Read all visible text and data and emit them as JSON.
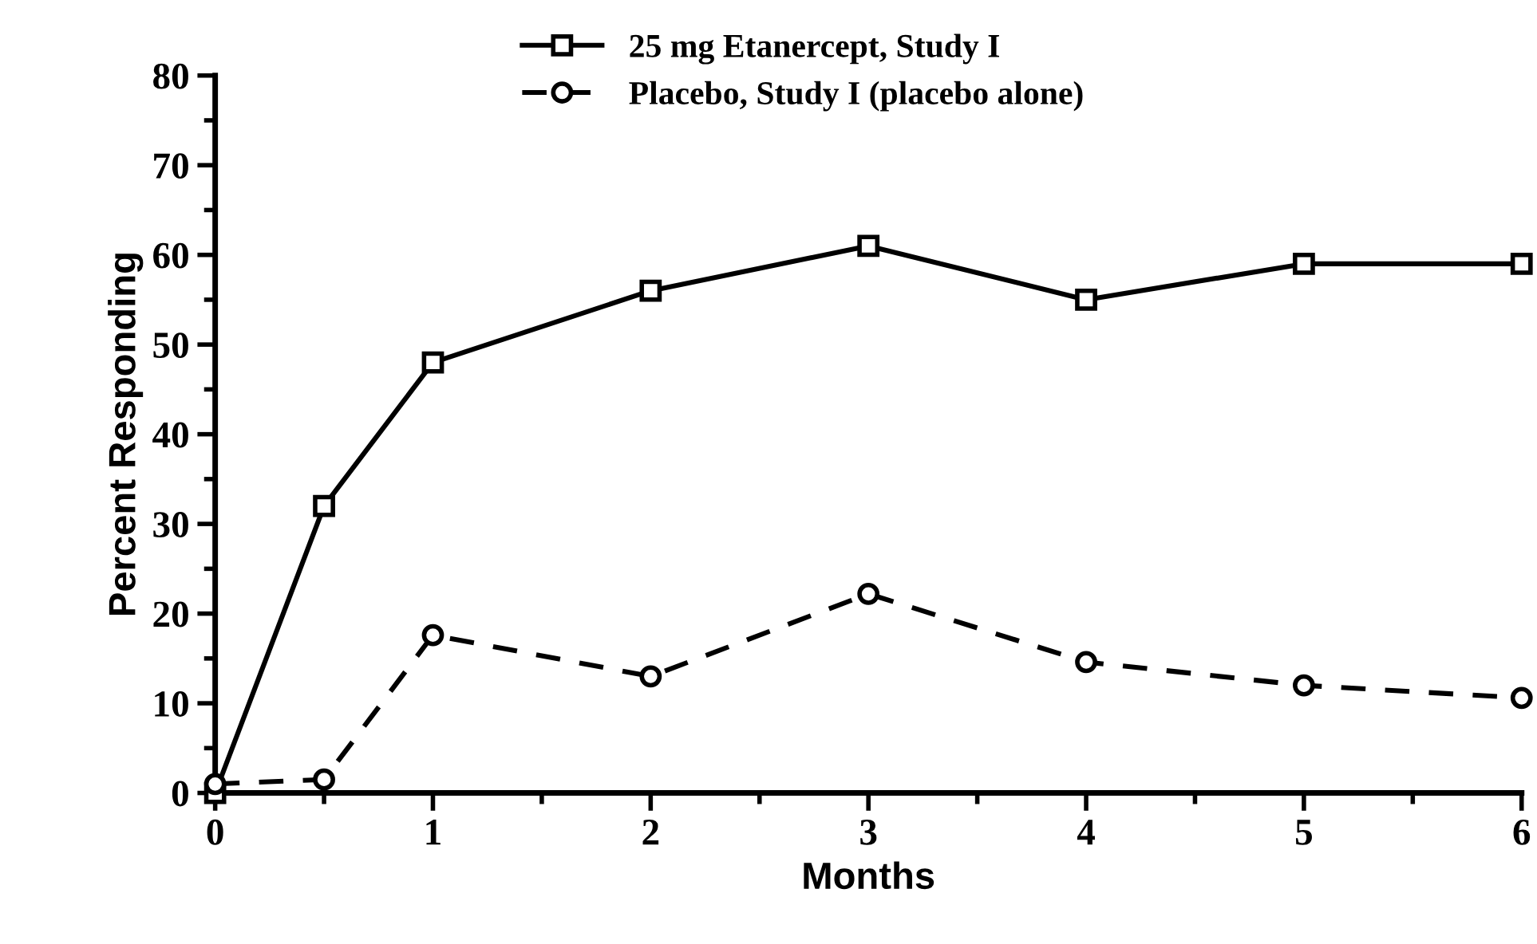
{
  "chart_data": {
    "type": "line",
    "xlabel": "Months",
    "ylabel": "Percent Responding",
    "xlim": [
      0,
      6
    ],
    "xticks": [
      0,
      1,
      2,
      3,
      4,
      5,
      6
    ],
    "ylim": [
      0,
      80
    ],
    "yticks": [
      0,
      10,
      20,
      30,
      40,
      50,
      60,
      70,
      80
    ],
    "legend": "top",
    "grid": false,
    "series": [
      {
        "name": "25 mg Etanercept, Study I",
        "color": "#000000",
        "marker": "square",
        "line_style": "solid",
        "x": [
          0,
          0.5,
          1,
          2,
          3,
          4,
          5,
          6
        ],
        "values": [
          0,
          32,
          48,
          56,
          61,
          55,
          59,
          59
        ]
      },
      {
        "name": "Placebo, Study I (placebo alone)",
        "color": "#000000",
        "marker": "circle",
        "line_style": "dashed",
        "x": [
          0,
          0.5,
          1,
          2,
          3,
          4,
          5,
          6
        ],
        "values": [
          1,
          1.5,
          17.6,
          13,
          22.2,
          14.6,
          12,
          10.6
        ]
      }
    ]
  }
}
